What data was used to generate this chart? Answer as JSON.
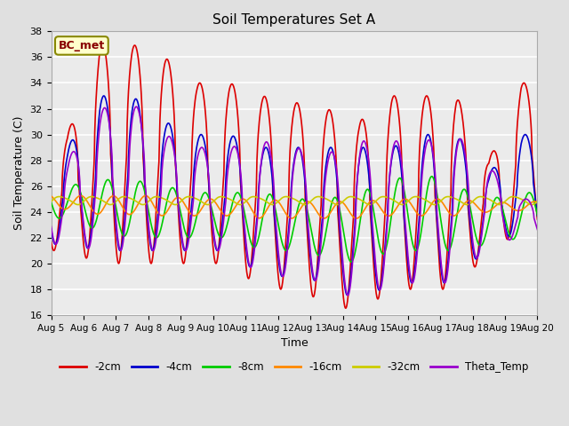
{
  "title": "Soil Temperatures Set A",
  "xlabel": "Time",
  "ylabel": "Soil Temperature (C)",
  "ylim": [
    16,
    38
  ],
  "yticks": [
    16,
    18,
    20,
    22,
    24,
    26,
    28,
    30,
    32,
    34,
    36,
    38
  ],
  "date_labels": [
    "Aug 5",
    "Aug 6",
    "Aug 7",
    "Aug 8",
    "Aug 9",
    "Aug 10",
    "Aug 11",
    "Aug 12",
    "Aug 13",
    "Aug 14",
    "Aug 15",
    "Aug 16",
    "Aug 17",
    "Aug 18",
    "Aug 19",
    "Aug 20"
  ],
  "legend_labels": [
    "-2cm",
    "-4cm",
    "-8cm",
    "-16cm",
    "-32cm",
    "Theta_Temp"
  ],
  "line_colors": [
    "#dd0000",
    "#0000cc",
    "#00cc00",
    "#ff8800",
    "#cccc00",
    "#9900cc"
  ],
  "annotation_text": "BC_met",
  "annotation_color": "#880000",
  "annotation_bg": "#ffffcc",
  "annotation_border": "#888800",
  "bg_color": "#e0e0e0",
  "plot_bg": "#ebebeb",
  "grid_color": "#ffffff",
  "n_points": 1440,
  "days": 15
}
